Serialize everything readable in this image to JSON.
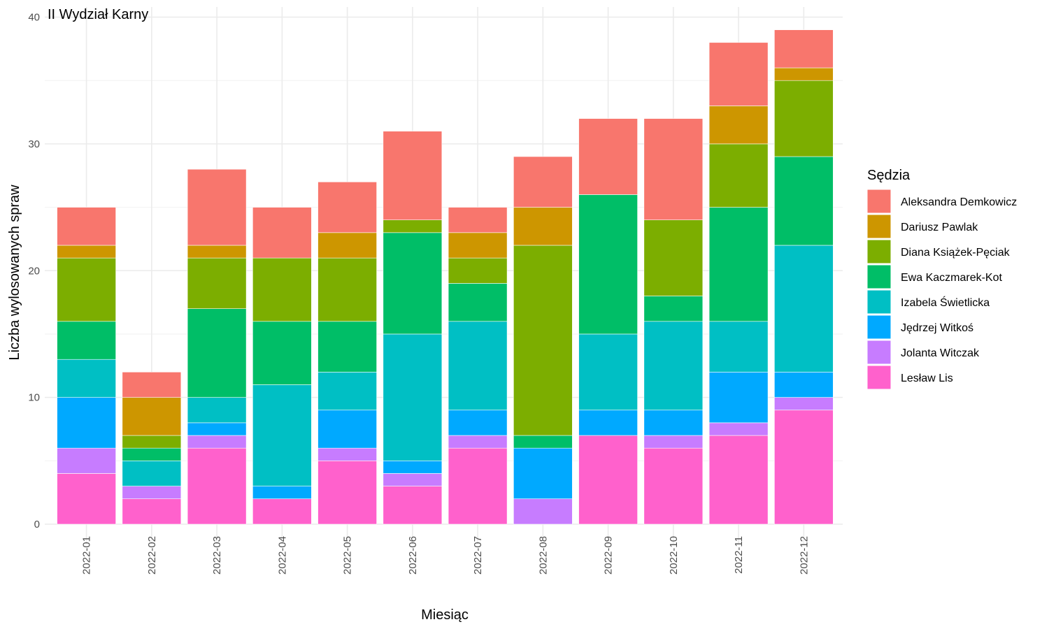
{
  "chart_data": {
    "type": "bar",
    "stacked": true,
    "title": "II Wydział Karny",
    "xlabel": "Miesiąc",
    "ylabel": "Liczba wylosowanych spraw",
    "ylim": [
      0,
      40
    ],
    "yticks": [
      0,
      10,
      20,
      30,
      40
    ],
    "grid": true,
    "legend_title": "Sędzia",
    "legend_position": "right",
    "categories": [
      "2022-01",
      "2022-02",
      "2022-03",
      "2022-04",
      "2022-05",
      "2022-06",
      "2022-07",
      "2022-08",
      "2022-09",
      "2022-10",
      "2022-11",
      "2022-12"
    ],
    "series": [
      {
        "name": "Aleksandra Demkowicz",
        "color": "#F8766D",
        "values": [
          3,
          2,
          6,
          4,
          4,
          7,
          2,
          4,
          6,
          8,
          5,
          3
        ]
      },
      {
        "name": "Dariusz Pawlak",
        "color": "#CD9600",
        "values": [
          1,
          3,
          1,
          0,
          2,
          0,
          2,
          3,
          0,
          0,
          3,
          1
        ]
      },
      {
        "name": "Diana Książek-Pęciak",
        "color": "#7CAE00",
        "values": [
          5,
          1,
          4,
          5,
          5,
          1,
          2,
          15,
          0,
          6,
          5,
          6
        ]
      },
      {
        "name": "Ewa Kaczmarek-Kot",
        "color": "#00BE67",
        "values": [
          3,
          1,
          7,
          5,
          4,
          8,
          3,
          1,
          11,
          2,
          9,
          7
        ]
      },
      {
        "name": "Izabela Świetlicka",
        "color": "#00BFC4",
        "values": [
          3,
          2,
          2,
          8,
          3,
          10,
          7,
          0,
          6,
          7,
          4,
          10
        ]
      },
      {
        "name": "Jędrzej Witkoś",
        "color": "#00A9FF",
        "values": [
          4,
          0,
          1,
          1,
          3,
          1,
          2,
          4,
          2,
          2,
          4,
          2
        ]
      },
      {
        "name": "Jolanta Witczak",
        "color": "#C77CFF",
        "values": [
          2,
          1,
          1,
          0,
          1,
          1,
          1,
          2,
          0,
          1,
          1,
          1
        ]
      },
      {
        "name": "Lesław Lis",
        "color": "#FF61CC",
        "values": [
          4,
          2,
          6,
          2,
          5,
          3,
          6,
          0,
          7,
          6,
          7,
          9
        ]
      }
    ]
  }
}
